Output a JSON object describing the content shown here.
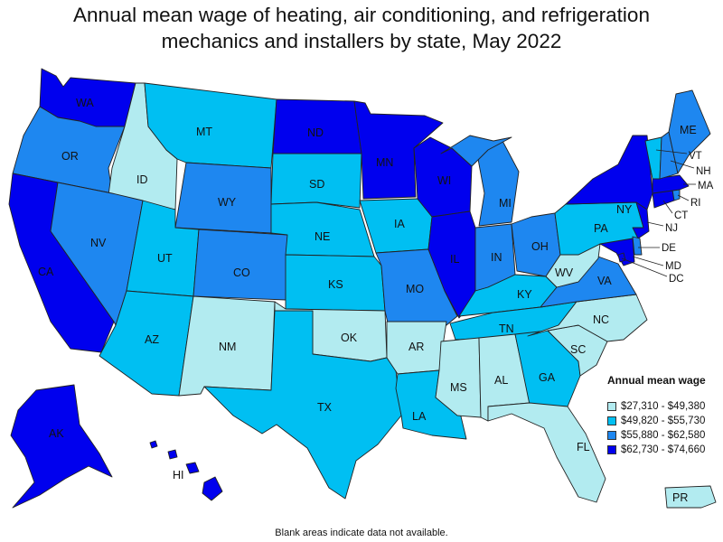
{
  "title_line1": "Annual mean wage of heating, air conditioning, and refrigeration",
  "title_line2": "mechanics and installers by state, May 2022",
  "note": "Blank areas indicate data not available.",
  "legend": {
    "title": "Annual mean wage",
    "items": [
      {
        "label": "$27,310 - $49,380",
        "color": "#b2ebf0"
      },
      {
        "label": "$49,820 - $55,730",
        "color": "#00bff2"
      },
      {
        "label": "$55,880 - $62,580",
        "color": "#1e87f0"
      },
      {
        "label": "$62,730 - $74,660",
        "color": "#0000ee"
      }
    ]
  },
  "states": {
    "WA": 4,
    "OR": 3,
    "CA": 4,
    "ID": 1,
    "NV": 3,
    "MT": 2,
    "WY": 3,
    "UT": 2,
    "AZ": 2,
    "CO": 3,
    "NM": 1,
    "ND": 4,
    "SD": 2,
    "NE": 2,
    "KS": 2,
    "OK": 1,
    "TX": 2,
    "MN": 4,
    "IA": 2,
    "MO": 3,
    "AR": 1,
    "LA": 2,
    "WI": 4,
    "IL": 4,
    "MI": 3,
    "IN": 3,
    "OH": 3,
    "KY": 2,
    "TN": 2,
    "MS": 1,
    "AL": 1,
    "GA": 2,
    "FL": 1,
    "SC": 1,
    "NC": 1,
    "VA": 3,
    "WV": 1,
    "PA": 2,
    "NY": 4,
    "ME": 3,
    "VT": 2,
    "NH": 3,
    "MA": 4,
    "RI": 3,
    "CT": 4,
    "NJ": 4,
    "DE": 3,
    "MD": 4,
    "DC": 4,
    "AK": 4,
    "HI": 4,
    "PR": 1
  }
}
